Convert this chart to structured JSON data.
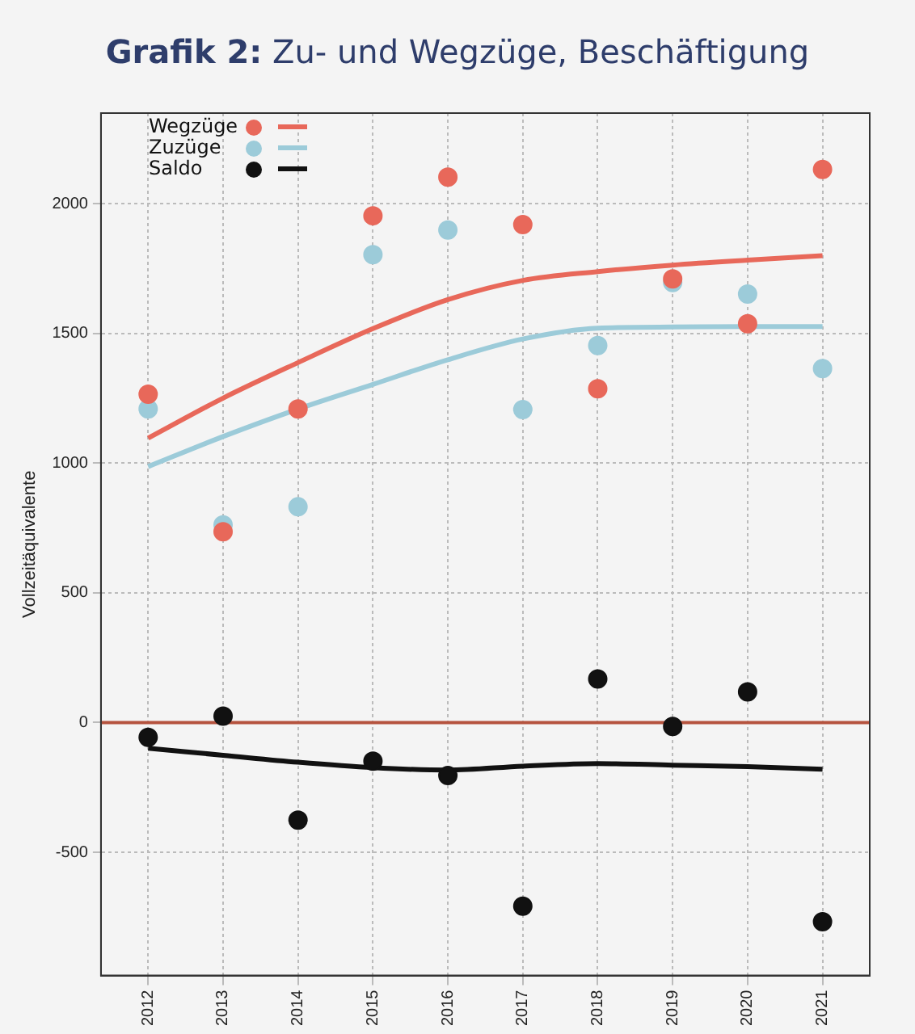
{
  "chart_data": {
    "type": "scatter",
    "title": "Grafik 2: Zu- und Wegzüge, Beschäftigung",
    "ylabel": "Vollzeitäquivalente",
    "x": [
      2012,
      2013,
      2014,
      2015,
      2016,
      2017,
      2018,
      2019,
      2020,
      2021
    ],
    "xlim": [
      2011.37,
      2021.63
    ],
    "xticks": [
      2012,
      2013,
      2014,
      2015,
      2016,
      2017,
      2018,
      2019,
      2020,
      2021
    ],
    "ylim": [
      -975,
      2350
    ],
    "yticks": [
      -500,
      0,
      500,
      1000,
      1500,
      2000
    ],
    "series": [
      {
        "name": "Wegzüge",
        "color": "#e8685a",
        "marker": "circle",
        "values": [
          1266,
          736,
          1209,
          1954,
          2103,
          1920,
          1287,
          1711,
          1538,
          2133
        ]
      },
      {
        "name": "Zuzüge",
        "color": "#9ccbd9",
        "marker": "circle",
        "values": [
          1209,
          762,
          832,
          1804,
          1899,
          1207,
          1454,
          1697,
          1652,
          1365
        ]
      },
      {
        "name": "Saldo",
        "color": "#111111",
        "marker": "circle",
        "values": [
          -57,
          25,
          -376,
          -149,
          -204,
          -708,
          168,
          -15,
          118,
          -768
        ]
      },
      {
        "type": "line",
        "color": "#e8685a",
        "marker": "none",
        "line_style": "solid",
        "values": [
          1097,
          1251,
          1388,
          1519,
          1631,
          1705,
          1739,
          1764,
          1783,
          1800
        ]
      },
      {
        "type": "line",
        "color": "#9ccbd9",
        "marker": "none",
        "line_style": "solid",
        "values": [
          987,
          1103,
          1209,
          1304,
          1399,
          1479,
          1521,
          1525,
          1527,
          1527
        ]
      },
      {
        "type": "line",
        "color": "#111111",
        "marker": "none",
        "line_style": "solid",
        "values": [
          -99,
          -126,
          -153,
          -174,
          -183,
          -168,
          -158,
          -164,
          -170,
          -180
        ]
      }
    ],
    "ref_lines": [
      {
        "axis": "y",
        "value": 0,
        "color": "#b5533e",
        "line_style": "solid"
      }
    ],
    "grid": true,
    "legend": "top left"
  }
}
